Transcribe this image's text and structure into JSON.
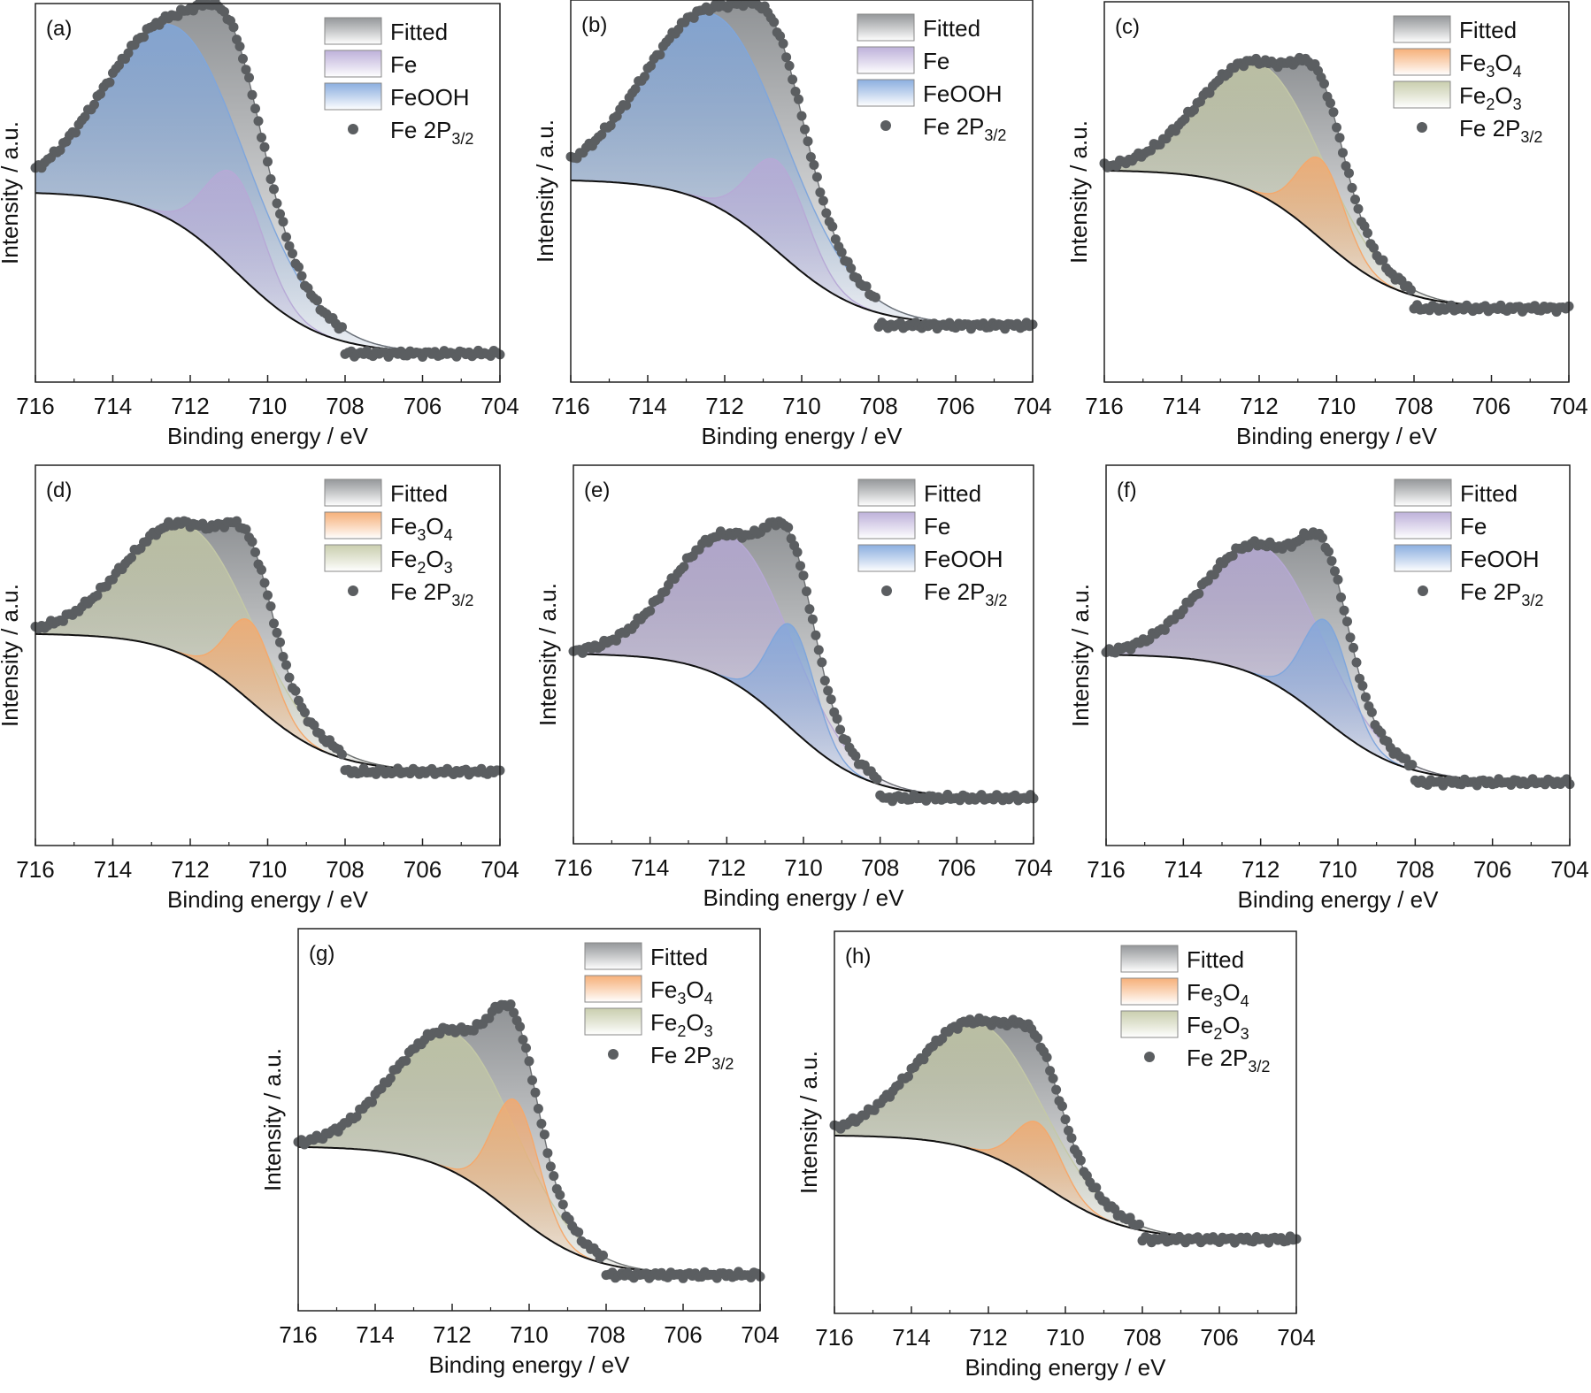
{
  "figure": {
    "x_axis_label": "Binding energy / eV",
    "y_axis_label": "Intensity / a.u.",
    "x_ticks": [
      "716",
      "714",
      "712",
      "710",
      "708",
      "706",
      "704"
    ],
    "colors": {
      "Fitted": "#8a8d90",
      "Fe": "#b7a9d6",
      "FeOOH": "#7fa6dc",
      "Fe3O4": "#f5a86b",
      "Fe2O3": "#c4c9a6",
      "data": "#5b5e61",
      "background": "#111111"
    }
  },
  "chart_data": [
    {
      "type": "line",
      "panel": "(a)",
      "title": "",
      "xlabel": "Binding energy / eV",
      "ylabel": "Intensity / a.u.",
      "xlim": [
        716,
        704
      ],
      "ylim": [
        0,
        1
      ],
      "reversed_x": true,
      "legend_position": "top-right",
      "legend": [
        {
          "name": "Fitted",
          "parts": [
            [
              "Fitted",
              ""
            ]
          ],
          "kind": "fill"
        },
        {
          "name": "Fe",
          "parts": [
            [
              "Fe",
              ""
            ]
          ],
          "kind": "fill"
        },
        {
          "name": "FeOOH",
          "parts": [
            [
              "FeOOH",
              ""
            ]
          ],
          "kind": "fill"
        },
        {
          "name": "Fe 2P3/2",
          "parts": [
            [
              "Fe 2P",
              ""
            ],
            [
              "3/2",
              "sub"
            ]
          ],
          "kind": "marker"
        }
      ],
      "background": {
        "start": 0.52,
        "end": 0.05,
        "center": 710.8,
        "width": 1.1
      },
      "data_tail_level": 0.05,
      "peaks": [
        {
          "name": "FeOOH",
          "center": 712.3,
          "height": 0.57,
          "width": 1.8
        },
        {
          "name": "Fe",
          "center": 710.85,
          "height": 0.28,
          "width": 0.75
        }
      ]
    },
    {
      "type": "line",
      "panel": "(b)",
      "title": "",
      "xlabel": "Binding energy / eV",
      "ylabel": "Intensity / a.u.",
      "xlim": [
        716,
        704
      ],
      "ylim": [
        0,
        1
      ],
      "reversed_x": true,
      "legend_position": "top-right",
      "legend": [
        {
          "name": "Fitted",
          "parts": [
            [
              "Fitted",
              ""
            ]
          ],
          "kind": "fill"
        },
        {
          "name": "Fe",
          "parts": [
            [
              "Fe",
              ""
            ]
          ],
          "kind": "fill"
        },
        {
          "name": "FeOOH",
          "parts": [
            [
              "FeOOH",
              ""
            ]
          ],
          "kind": "fill"
        },
        {
          "name": "Fe 2P3/2",
          "parts": [
            [
              "Fe 2P",
              ""
            ],
            [
              "3/2",
              "sub"
            ]
          ],
          "kind": "marker"
        }
      ],
      "background": {
        "start": 0.55,
        "end": 0.13,
        "center": 710.6,
        "width": 1.1
      },
      "data_tail_level": 0.13,
      "peaks": [
        {
          "name": "FeOOH",
          "center": 712.2,
          "height": 0.55,
          "width": 1.8
        },
        {
          "name": "Fe",
          "center": 710.6,
          "height": 0.26,
          "width": 0.75
        }
      ]
    },
    {
      "type": "line",
      "panel": "(c)",
      "title": "",
      "xlabel": "Binding energy / eV",
      "ylabel": "Intensity / a.u.",
      "xlim": [
        716,
        704
      ],
      "ylim": [
        0,
        1
      ],
      "reversed_x": true,
      "legend_position": "top-right",
      "legend": [
        {
          "name": "Fitted",
          "parts": [
            [
              "Fitted",
              ""
            ]
          ],
          "kind": "fill"
        },
        {
          "name": "Fe3O4",
          "parts": [
            [
              "Fe",
              ""
            ],
            [
              "3",
              "sub"
            ],
            [
              "O",
              ""
            ],
            [
              "4",
              "sub"
            ]
          ],
          "kind": "fill"
        },
        {
          "name": "Fe2O3",
          "parts": [
            [
              "Fe",
              ""
            ],
            [
              "2",
              "sub"
            ],
            [
              "O",
              ""
            ],
            [
              "3",
              "sub"
            ]
          ],
          "kind": "fill"
        },
        {
          "name": "Fe 2P3/2",
          "parts": [
            [
              "Fe 2P",
              ""
            ],
            [
              "3/2",
              "sub"
            ]
          ],
          "kind": "marker"
        }
      ],
      "background": {
        "start": 0.58,
        "end": 0.18,
        "center": 710.4,
        "width": 1.05
      },
      "data_tail_level": 0.18,
      "peaks": [
        {
          "name": "Fe2O3",
          "center": 711.9,
          "height": 0.38,
          "width": 1.55
        },
        {
          "name": "Fe3O4",
          "center": 710.4,
          "height": 0.23,
          "width": 0.6
        }
      ]
    },
    {
      "type": "line",
      "panel": "(d)",
      "title": "",
      "xlabel": "Binding energy / eV",
      "ylabel": "Intensity / a.u.",
      "xlim": [
        716,
        704
      ],
      "ylim": [
        0,
        1
      ],
      "reversed_x": true,
      "legend_position": "top-right",
      "legend": [
        {
          "name": "Fitted",
          "parts": [
            [
              "Fitted",
              ""
            ]
          ],
          "kind": "fill"
        },
        {
          "name": "Fe3O4",
          "parts": [
            [
              "Fe",
              ""
            ],
            [
              "3",
              "sub"
            ],
            [
              "O",
              ""
            ],
            [
              "4",
              "sub"
            ]
          ],
          "kind": "fill"
        },
        {
          "name": "Fe2O3",
          "parts": [
            [
              "Fe",
              ""
            ],
            [
              "2",
              "sub"
            ],
            [
              "O",
              ""
            ],
            [
              "3",
              "sub"
            ]
          ],
          "kind": "fill"
        },
        {
          "name": "Fe 2P3/2",
          "parts": [
            [
              "Fe 2P",
              ""
            ],
            [
              "3/2",
              "sub"
            ]
          ],
          "kind": "marker"
        }
      ],
      "background": {
        "start": 0.58,
        "end": 0.18,
        "center": 710.4,
        "width": 1.05
      },
      "data_tail_level": 0.18,
      "peaks": [
        {
          "name": "Fe2O3",
          "center": 712.0,
          "height": 0.38,
          "width": 1.6
        },
        {
          "name": "Fe3O4",
          "center": 710.45,
          "height": 0.23,
          "width": 0.6
        }
      ]
    },
    {
      "type": "line",
      "panel": "(e)",
      "title": "",
      "xlabel": "Binding energy / eV",
      "ylabel": "Intensity / a.u.",
      "xlim": [
        716,
        704
      ],
      "ylim": [
        0,
        1
      ],
      "reversed_x": true,
      "legend_position": "top-right",
      "legend": [
        {
          "name": "Fitted",
          "parts": [
            [
              "Fitted",
              ""
            ]
          ],
          "kind": "fill"
        },
        {
          "name": "Fe",
          "parts": [
            [
              "Fe",
              ""
            ]
          ],
          "kind": "fill"
        },
        {
          "name": "FeOOH",
          "parts": [
            [
              "FeOOH",
              ""
            ]
          ],
          "kind": "fill"
        },
        {
          "name": "Fe 2P3/2",
          "parts": [
            [
              "Fe 2P",
              ""
            ],
            [
              "3/2",
              "sub"
            ]
          ],
          "kind": "marker"
        }
      ],
      "background": {
        "start": 0.52,
        "end": 0.1,
        "center": 710.4,
        "width": 1.05
      },
      "data_tail_level": 0.1,
      "peaks": [
        {
          "name": "Fe",
          "center": 711.8,
          "height": 0.42,
          "width": 1.5
        },
        {
          "name": "FeOOH",
          "center": 710.3,
          "height": 0.3,
          "width": 0.6
        }
      ]
    },
    {
      "type": "line",
      "panel": "(f)",
      "title": "",
      "xlabel": "Binding energy / eV",
      "ylabel": "Intensity / a.u.",
      "xlim": [
        716,
        704
      ],
      "ylim": [
        0,
        1
      ],
      "reversed_x": true,
      "legend_position": "top-right",
      "legend": [
        {
          "name": "Fitted",
          "parts": [
            [
              "Fitted",
              ""
            ]
          ],
          "kind": "fill"
        },
        {
          "name": "Fe",
          "parts": [
            [
              "Fe",
              ""
            ]
          ],
          "kind": "fill"
        },
        {
          "name": "FeOOH",
          "parts": [
            [
              "FeOOH",
              ""
            ]
          ],
          "kind": "fill"
        },
        {
          "name": "Fe 2P3/2",
          "parts": [
            [
              "Fe 2P",
              ""
            ],
            [
              "3/2",
              "sub"
            ]
          ],
          "kind": "marker"
        }
      ],
      "background": {
        "start": 0.52,
        "end": 0.15,
        "center": 710.4,
        "width": 1.05
      },
      "data_tail_level": 0.15,
      "peaks": [
        {
          "name": "Fe",
          "center": 711.9,
          "height": 0.38,
          "width": 1.5
        },
        {
          "name": "FeOOH",
          "center": 710.3,
          "height": 0.29,
          "width": 0.6
        }
      ]
    },
    {
      "type": "line",
      "panel": "(g)",
      "title": "",
      "xlabel": "Binding energy / eV",
      "ylabel": "Intensity / a.u.",
      "xlim": [
        716,
        704
      ],
      "ylim": [
        0,
        1
      ],
      "reversed_x": true,
      "legend_position": "top-right",
      "legend": [
        {
          "name": "Fitted",
          "parts": [
            [
              "Fitted",
              ""
            ]
          ],
          "kind": "fill"
        },
        {
          "name": "Fe3O4",
          "parts": [
            [
              "Fe",
              ""
            ],
            [
              "3",
              "sub"
            ],
            [
              "O",
              ""
            ],
            [
              "4",
              "sub"
            ]
          ],
          "kind": "fill"
        },
        {
          "name": "Fe2O3",
          "parts": [
            [
              "Fe",
              ""
            ],
            [
              "2",
              "sub"
            ],
            [
              "O",
              ""
            ],
            [
              "3",
              "sub"
            ]
          ],
          "kind": "fill"
        },
        {
          "name": "Fe 2P3/2",
          "parts": [
            [
              "Fe 2P",
              ""
            ],
            [
              "3/2",
              "sub"
            ]
          ],
          "kind": "marker"
        }
      ],
      "background": {
        "start": 0.44,
        "end": 0.07,
        "center": 710.5,
        "width": 1.05
      },
      "data_tail_level": 0.07,
      "peaks": [
        {
          "name": "Fe2O3",
          "center": 711.9,
          "height": 0.4,
          "width": 1.55
        },
        {
          "name": "Fe3O4",
          "center": 710.35,
          "height": 0.33,
          "width": 0.6
        }
      ]
    },
    {
      "type": "line",
      "panel": "(h)",
      "title": "",
      "xlabel": "Binding energy / eV",
      "ylabel": "Intensity / a.u.",
      "xlim": [
        716,
        704
      ],
      "ylim": [
        0,
        1
      ],
      "reversed_x": true,
      "legend_position": "top-right",
      "legend": [
        {
          "name": "Fitted",
          "parts": [
            [
              "Fitted",
              ""
            ]
          ],
          "kind": "fill"
        },
        {
          "name": "Fe3O4",
          "parts": [
            [
              "Fe",
              ""
            ],
            [
              "3",
              "sub"
            ],
            [
              "O",
              ""
            ],
            [
              "4",
              "sub"
            ]
          ],
          "kind": "fill"
        },
        {
          "name": "Fe2O3",
          "parts": [
            [
              "Fe",
              ""
            ],
            [
              "2",
              "sub"
            ],
            [
              "O",
              ""
            ],
            [
              "3",
              "sub"
            ]
          ],
          "kind": "fill"
        },
        {
          "name": "Fe 2P3/2",
          "parts": [
            [
              "Fe 2P",
              ""
            ],
            [
              "3/2",
              "sub"
            ]
          ],
          "kind": "marker"
        }
      ],
      "background": {
        "start": 0.48,
        "end": 0.18,
        "center": 710.5,
        "width": 1.05
      },
      "data_tail_level": 0.18,
      "peaks": [
        {
          "name": "Fe2O3",
          "center": 712.2,
          "height": 0.37,
          "width": 1.6
        },
        {
          "name": "Fe3O4",
          "center": 710.7,
          "height": 0.17,
          "width": 0.6
        }
      ]
    }
  ]
}
